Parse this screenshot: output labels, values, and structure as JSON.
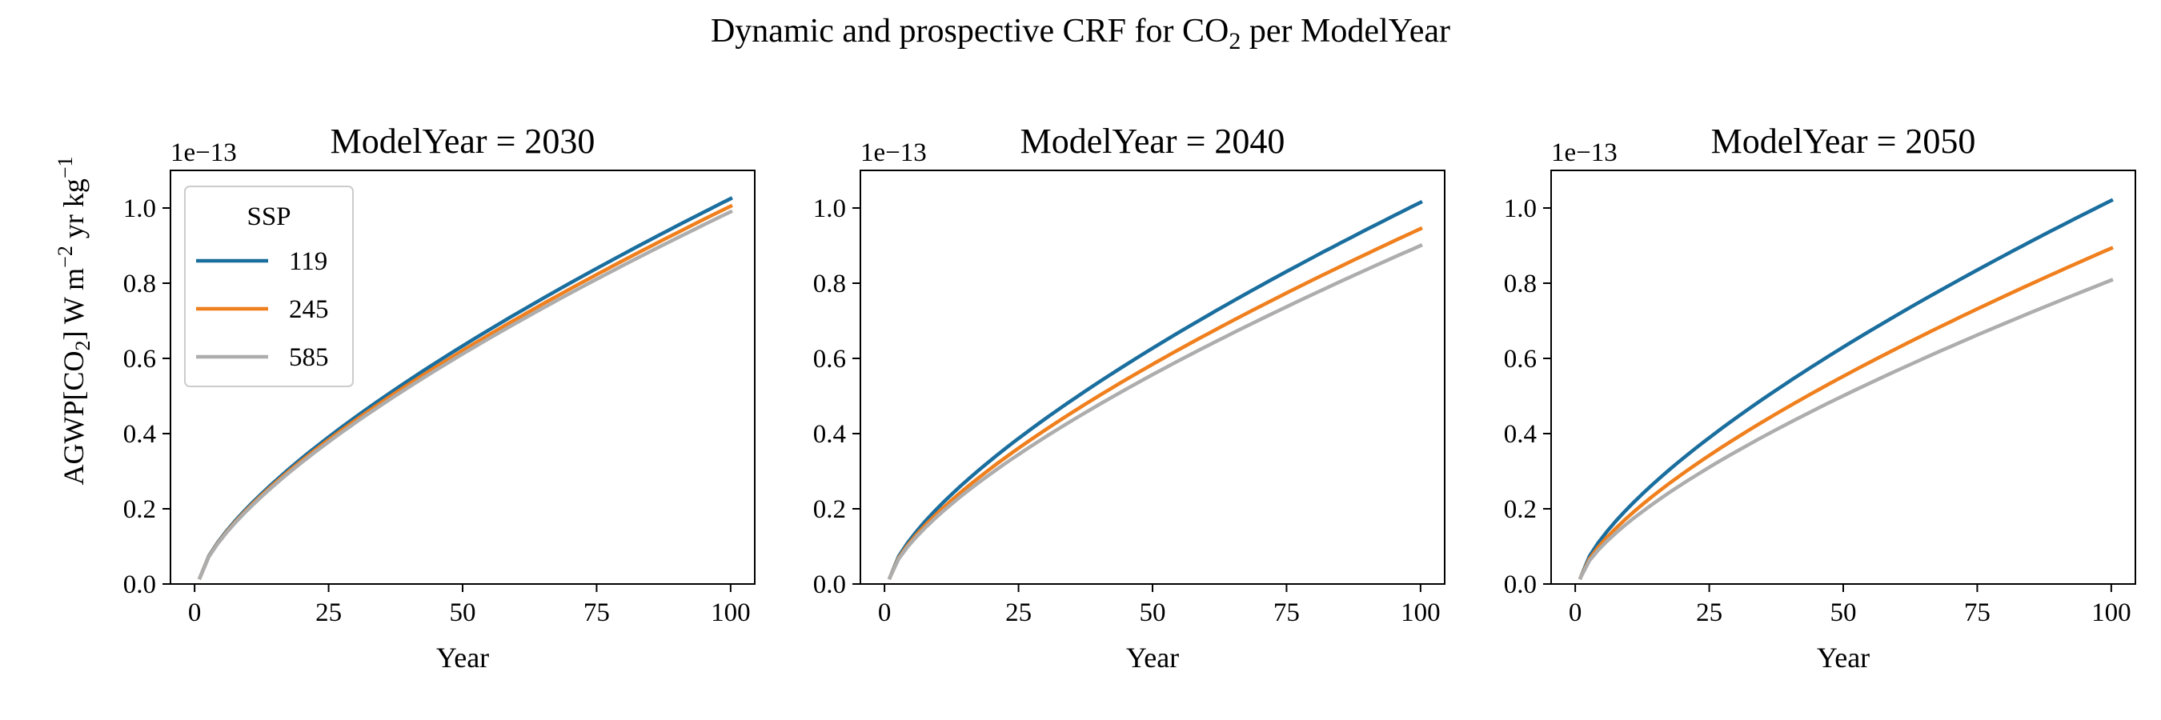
{
  "suptitle": {
    "before": "Dynamic and prospective CRF for CO",
    "sub": "2",
    "after": " per ModelYear"
  },
  "ylabel": {
    "part1": "AGWP[CO",
    "sub": "2",
    "part2": "]  W m",
    "sup1": "−2",
    "part3": " yr kg",
    "sup2": "−1"
  },
  "legend": {
    "title": "SSP",
    "placement": "upper-left of first panel"
  },
  "colors": {
    "119": "#1a6e9e",
    "245": "#f07f1d",
    "585": "#adadad"
  },
  "chart_data": [
    {
      "type": "line",
      "title": "ModelYear = 2030",
      "xlabel": "Year",
      "ylabel_shown": true,
      "offset_text": "1e−13",
      "xlim": [
        -4.5,
        104.5
      ],
      "ylim": [
        0.0,
        1.1
      ],
      "xticks": [
        0,
        25,
        50,
        75,
        100
      ],
      "xtick_labels": [
        "0",
        "25",
        "50",
        "75",
        "100"
      ],
      "yticks": [
        0.0,
        0.2,
        0.4,
        0.6,
        0.8,
        1.0
      ],
      "ytick_labels": [
        "0.0",
        "0.2",
        "0.4",
        "0.6",
        "0.8",
        "1.0"
      ],
      "grid": false,
      "x_start": 1,
      "x_end": 100,
      "series": [
        {
          "name": "119",
          "color": "#1a6e9e",
          "y_start": 0.017,
          "y_end": 1.025
        },
        {
          "name": "245",
          "color": "#f07f1d",
          "y_start": 0.017,
          "y_end": 1.005
        },
        {
          "name": "585",
          "color": "#adadad",
          "y_start": 0.017,
          "y_end": 0.99
        }
      ]
    },
    {
      "type": "line",
      "title": "ModelYear = 2040",
      "xlabel": "Year",
      "ylabel_shown": false,
      "offset_text": "1e−13",
      "xlim": [
        -4.5,
        104.5
      ],
      "ylim": [
        0.0,
        1.1
      ],
      "xticks": [
        0,
        25,
        50,
        75,
        100
      ],
      "xtick_labels": [
        "0",
        "25",
        "50",
        "75",
        "100"
      ],
      "yticks": [
        0.0,
        0.2,
        0.4,
        0.6,
        0.8,
        1.0
      ],
      "ytick_labels": [
        "0.0",
        "0.2",
        "0.4",
        "0.6",
        "0.8",
        "1.0"
      ],
      "grid": false,
      "x_start": 1,
      "x_end": 100,
      "series": [
        {
          "name": "119",
          "color": "#1a6e9e",
          "y_start": 0.017,
          "y_end": 1.015
        },
        {
          "name": "245",
          "color": "#f07f1d",
          "y_start": 0.017,
          "y_end": 0.945
        },
        {
          "name": "585",
          "color": "#adadad",
          "y_start": 0.017,
          "y_end": 0.9
        }
      ]
    },
    {
      "type": "line",
      "title": "ModelYear = 2050",
      "xlabel": "Year",
      "ylabel_shown": false,
      "offset_text": "1e−13",
      "xlim": [
        -4.5,
        104.5
      ],
      "ylim": [
        0.0,
        1.1
      ],
      "xticks": [
        0,
        25,
        50,
        75,
        100
      ],
      "xtick_labels": [
        "0",
        "25",
        "50",
        "75",
        "100"
      ],
      "yticks": [
        0.0,
        0.2,
        0.4,
        0.6,
        0.8,
        1.0
      ],
      "ytick_labels": [
        "0.0",
        "0.2",
        "0.4",
        "0.6",
        "0.8",
        "1.0"
      ],
      "grid": false,
      "x_start": 1,
      "x_end": 100,
      "series": [
        {
          "name": "119",
          "color": "#1a6e9e",
          "y_start": 0.017,
          "y_end": 1.02
        },
        {
          "name": "245",
          "color": "#f07f1d",
          "y_start": 0.017,
          "y_end": 0.893
        },
        {
          "name": "585",
          "color": "#adadad",
          "y_start": 0.017,
          "y_end": 0.808
        }
      ]
    }
  ]
}
